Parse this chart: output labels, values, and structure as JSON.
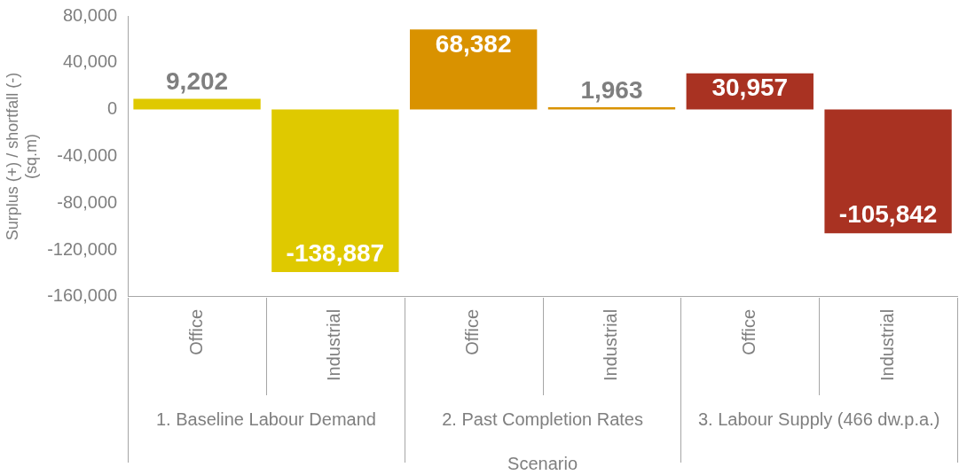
{
  "chart_data": {
    "type": "bar",
    "xlabel": "Scenario",
    "ylabel": "Surplus (+) / shortfall (-) (sq.m)",
    "categories": [
      "Office",
      "Industrial",
      "Office",
      "Industrial",
      "Office",
      "Industrial"
    ],
    "values": [
      9202,
      -138887,
      68382,
      1963,
      30957,
      -105842
    ],
    "value_labels": [
      "9,202",
      "-138,887",
      "68,382",
      "1,963",
      "30,957",
      "-105,842"
    ],
    "colors": [
      "#dfc900",
      "#dfc900",
      "#d99200",
      "#d99200",
      "#a93222",
      "#a93222"
    ],
    "ylim": [
      -160000,
      80000
    ],
    "yticks": [
      {
        "value": -160000,
        "label": "-160,000"
      },
      {
        "value": -120000,
        "label": "-120,000"
      },
      {
        "value": -80000,
        "label": "-80,000"
      },
      {
        "value": -40000,
        "label": "-40,000"
      },
      0,
      {
        "value": 40000,
        "label": "40,000"
      },
      {
        "value": 80000,
        "label": "80,000"
      }
    ],
    "annotations": [
      "1. Baseline Labour Demand",
      "2. Past Completion Rates",
      "3. Labour Supply (466 dw.p.a.)"
    ],
    "grid": false,
    "legend": false
  }
}
